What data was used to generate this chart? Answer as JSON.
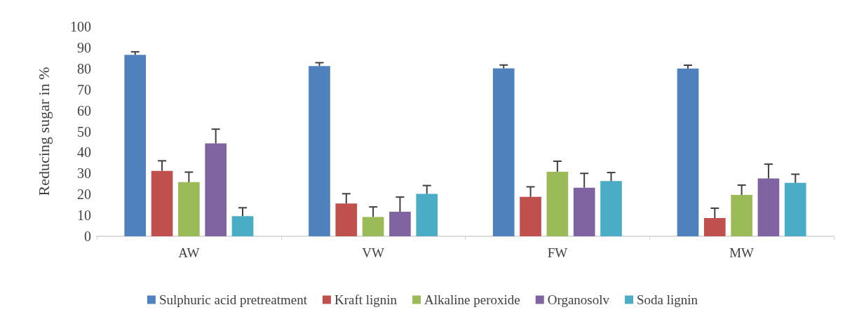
{
  "chart_data": {
    "type": "bar",
    "ylabel": "Reducing sugar in %",
    "categories": [
      "AW",
      "VW",
      "FW",
      "MW"
    ],
    "series": [
      {
        "name": "Sulphuric acid pretreatment",
        "color": "#4f81bd",
        "values": [
          86.5,
          81.2,
          80.1,
          80
        ],
        "errors": [
          [
            86.5,
            88
          ],
          [
            81.2,
            82.8
          ],
          [
            80.1,
            81.7
          ],
          [
            80,
            81.6
          ]
        ]
      },
      {
        "name": "Kraft lignin",
        "color": "#c0504d",
        "values": [
          31.2,
          15.6,
          18.8,
          8.7
        ],
        "errors": [
          [
            31.2,
            36
          ],
          [
            15.6,
            20.3
          ],
          [
            18.8,
            23.6
          ],
          [
            8.7,
            13.4
          ]
        ]
      },
      {
        "name": "Alkaline peroxide",
        "color": "#9bbb59",
        "values": [
          25.8,
          9.2,
          30.8,
          19.7
        ],
        "errors": [
          [
            25.8,
            30.6
          ],
          [
            9.2,
            14
          ],
          [
            30.8,
            35.8
          ],
          [
            19.7,
            24.4
          ]
        ]
      },
      {
        "name": "Organosolv",
        "color": "#8064a2",
        "values": [
          44.3,
          11.7,
          23.2,
          27.6
        ],
        "errors": [
          [
            44.3,
            51.1
          ],
          [
            11.7,
            18.7
          ],
          [
            23.2,
            30
          ],
          [
            27.6,
            34.4
          ]
        ]
      },
      {
        "name": "Soda lignin",
        "color": "#4bacc6",
        "values": [
          9.6,
          20.2,
          26.3,
          25.5
        ],
        "errors": [
          [
            9.6,
            13.6
          ],
          [
            20.2,
            24.2
          ],
          [
            26.3,
            30.4
          ],
          [
            25.5,
            29.6
          ]
        ]
      }
    ],
    "ylim": [
      0,
      100
    ],
    "yticks": [
      0,
      10,
      20,
      30,
      40,
      50,
      60,
      70,
      80,
      90,
      100
    ],
    "grid": false,
    "legend": "bottom"
  }
}
